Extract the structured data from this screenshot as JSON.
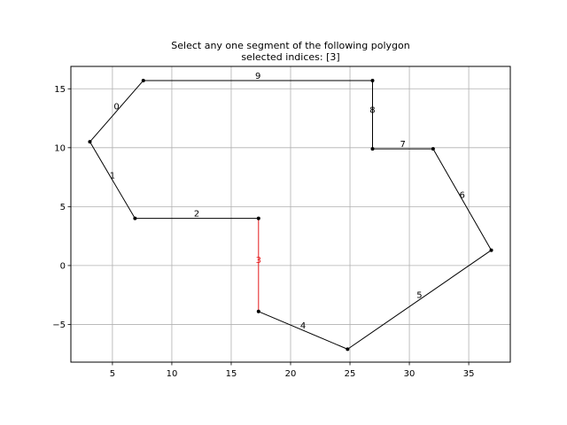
{
  "chart_data": {
    "type": "line",
    "title": "Select any one segment of the following polygon",
    "subtitle": "selected indices: [3]",
    "xlim": [
      1.5,
      38.5
    ],
    "ylim": [
      -8.2,
      16.9
    ],
    "xticks": [
      5,
      10,
      15,
      20,
      25,
      30,
      35
    ],
    "xtick_labels": [
      "5",
      "10",
      "15",
      "20",
      "25",
      "30",
      "35"
    ],
    "yticks": [
      -5,
      0,
      5,
      10,
      15
    ],
    "ytick_labels": [
      "−5",
      "0",
      "5",
      "10",
      "15"
    ],
    "grid": true,
    "vertices": [
      {
        "x": 7.6,
        "y": 15.7
      },
      {
        "x": 3.1,
        "y": 10.5
      },
      {
        "x": 6.9,
        "y": 4.0
      },
      {
        "x": 17.3,
        "y": 4.0
      },
      {
        "x": 17.3,
        "y": -3.9
      },
      {
        "x": 24.8,
        "y": -7.1
      },
      {
        "x": 36.9,
        "y": 1.3
      },
      {
        "x": 32.0,
        "y": 9.9
      },
      {
        "x": 26.9,
        "y": 9.9
      },
      {
        "x": 26.9,
        "y": 15.7
      }
    ],
    "segment_labels": [
      "0",
      "1",
      "2",
      "3",
      "4",
      "5",
      "6",
      "7",
      "8",
      "9"
    ],
    "selected_indices": [
      3
    ],
    "colors": {
      "default": "#000000",
      "selected": "#e41a1c",
      "grid": "#b0b0b0"
    }
  }
}
